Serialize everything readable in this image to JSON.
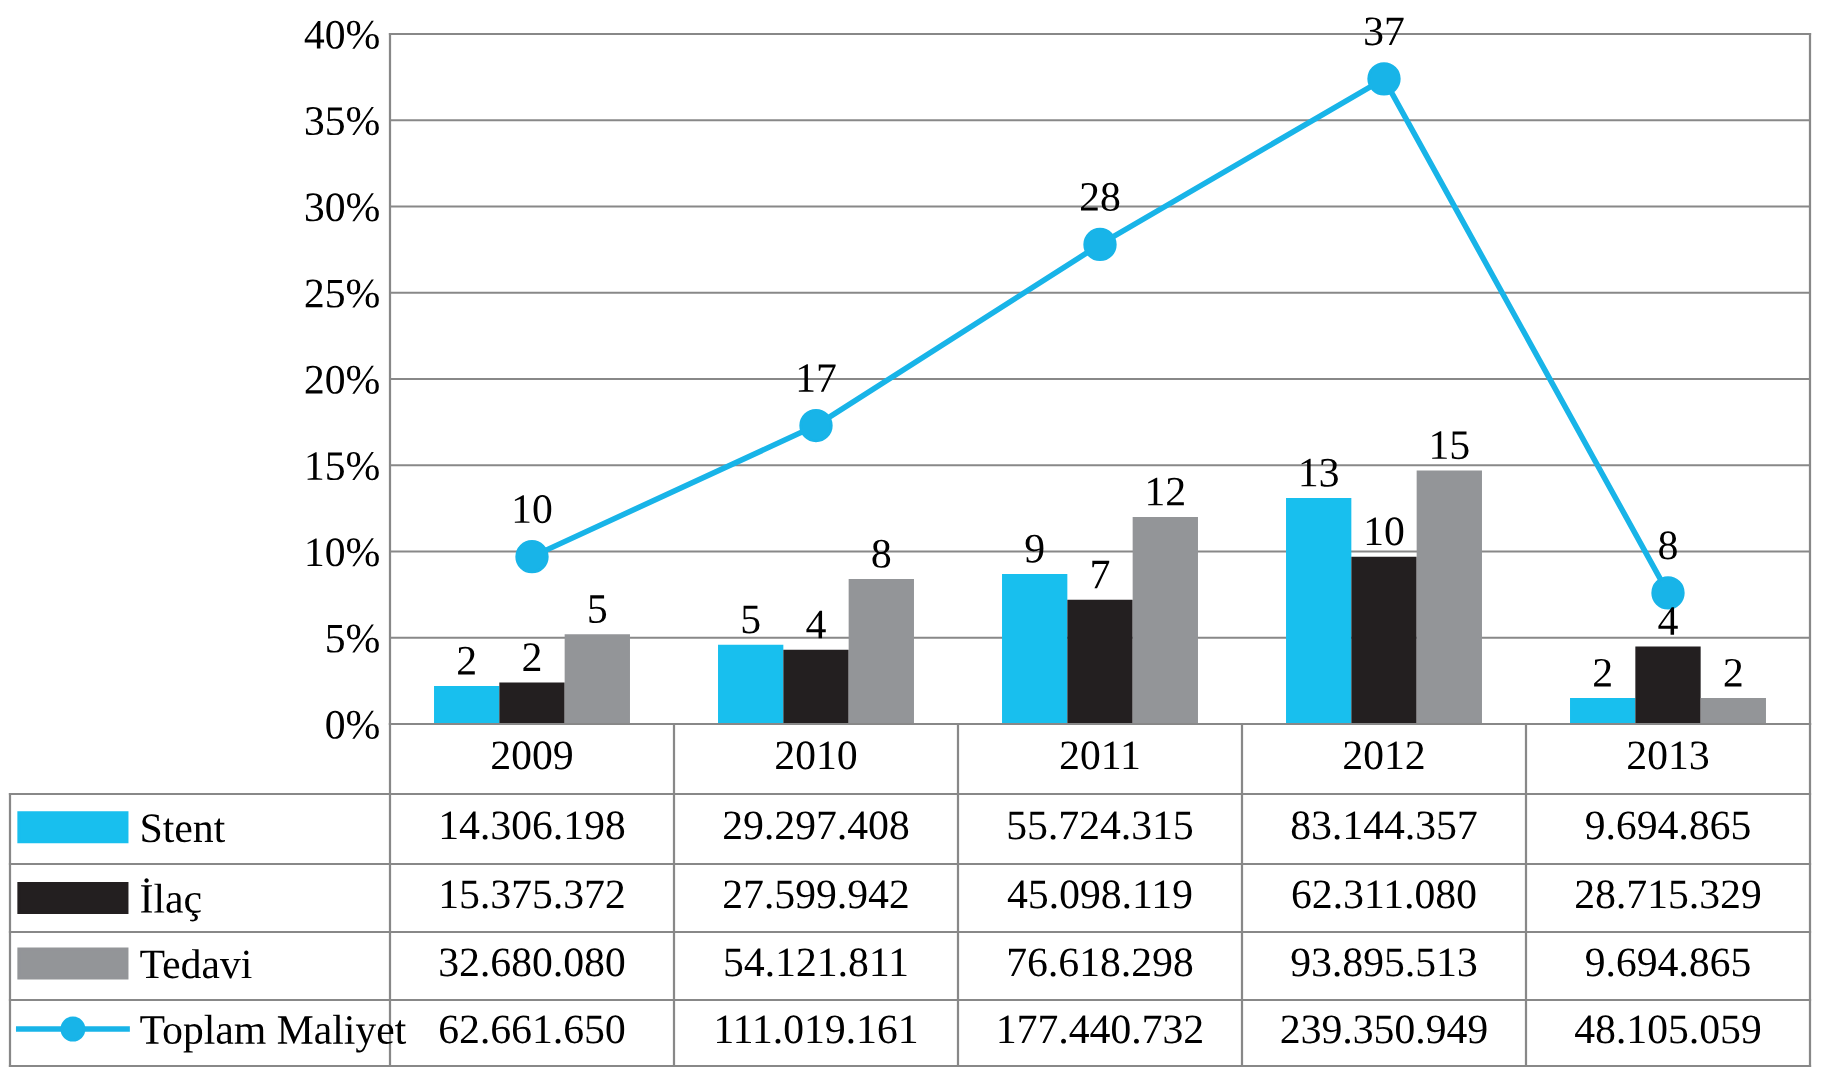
{
  "chart_data": {
    "type": "bar",
    "categories": [
      "2009",
      "2010",
      "2011",
      "2012",
      "2013"
    ],
    "series": [
      {
        "name": "Stent",
        "color": "#18bfee",
        "values": [
          2.2,
          4.6,
          8.7,
          13.1,
          1.5
        ],
        "value_labels": [
          "2",
          "5",
          "9",
          "13",
          "2"
        ]
      },
      {
        "name": "İlaç",
        "color": "#231f20",
        "values": [
          2.4,
          4.3,
          7.2,
          9.7,
          4.5
        ],
        "value_labels": [
          "2",
          "4",
          "7",
          "10",
          "4"
        ]
      },
      {
        "name": "Tedavi",
        "color": "#939598",
        "values": [
          5.2,
          8.4,
          12.0,
          14.7,
          1.5
        ],
        "value_labels": [
          "5",
          "8",
          "12",
          "15",
          "2"
        ]
      },
      {
        "name": "Toplam Maliyet",
        "type": "line",
        "color": "#18b4e8",
        "values": [
          9.7,
          17.3,
          27.8,
          37.4,
          7.6
        ],
        "value_labels": [
          "10",
          "17",
          "28",
          "37",
          "8"
        ],
        "marker": "circle"
      }
    ],
    "ylim": [
      0,
      40
    ],
    "yticks": [
      {
        "value": 0,
        "label": "0%"
      },
      {
        "value": 5,
        "label": "5%"
      },
      {
        "value": 10,
        "label": "10%"
      },
      {
        "value": 15,
        "label": "15%"
      },
      {
        "value": 20,
        "label": "20%"
      },
      {
        "value": 25,
        "label": "25%"
      },
      {
        "value": 30,
        "label": "30%"
      },
      {
        "value": 35,
        "label": "35%"
      },
      {
        "value": 40,
        "label": "40%"
      }
    ],
    "grid": "y",
    "legend": "bottom",
    "annotations": [
      "14.306.198",
      "29.297.408",
      "55.724.315",
      "83.144.357",
      "9.694.865",
      "15.375.372",
      "27.599.942",
      "45.098.119",
      "62.311.080",
      "28.715.329",
      "32.680.080",
      "54.121.811",
      "76.618.298",
      "93.895.513",
      "9.694.865",
      "62.661.650",
      "111.019.161",
      "177.440.732",
      "239.350.949",
      "48.105.059"
    ]
  }
}
